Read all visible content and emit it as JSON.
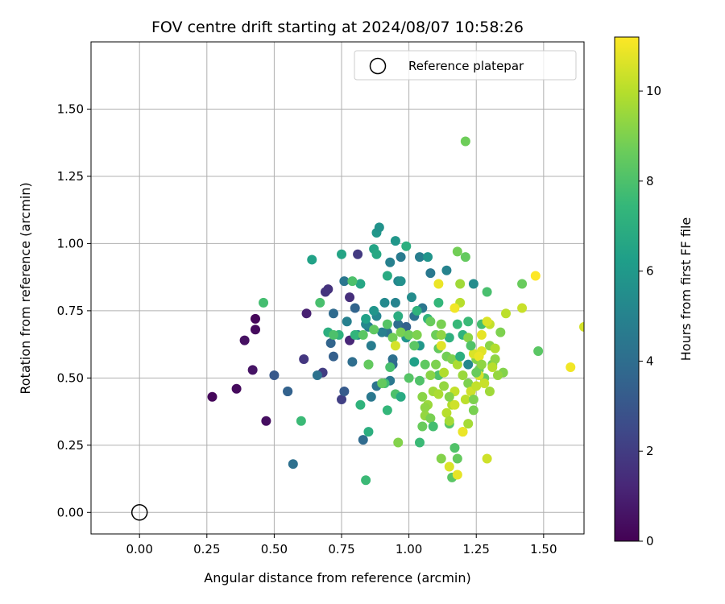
{
  "chart_data": {
    "type": "scatter",
    "title": "FOV centre drift starting at 2024/08/07 10:58:26",
    "xlabel": "Angular distance from reference (arcmin)",
    "ylabel": "Rotation from reference (arcmin)",
    "xlim": [
      -0.18,
      1.65
    ],
    "ylim": [
      -0.08,
      1.75
    ],
    "xticks": [
      "0.00",
      "0.25",
      "0.50",
      "0.75",
      "1.00",
      "1.25",
      "1.50"
    ],
    "xtick_values": [
      0,
      0.25,
      0.5,
      0.75,
      1.0,
      1.25,
      1.5
    ],
    "yticks": [
      "0.00",
      "0.25",
      "0.50",
      "0.75",
      "1.00",
      "1.25",
      "1.50"
    ],
    "ytick_values": [
      0,
      0.25,
      0.5,
      0.75,
      1.0,
      1.25,
      1.5
    ],
    "grid": true,
    "legend": {
      "placement": "top-right",
      "entries": [
        "Reference platepar"
      ]
    },
    "reference_point": {
      "x": 0.0,
      "y": 0.0,
      "marker": "open-circle"
    },
    "colorbar": {
      "label": "Hours from first FF file",
      "colormap": "viridis",
      "range": [
        0,
        11.2
      ],
      "ticks": [
        "0",
        "2",
        "4",
        "6",
        "8",
        "10"
      ],
      "tick_values": [
        0,
        2,
        4,
        6,
        8,
        10
      ]
    },
    "series": [
      {
        "points": [
          [
            0.27,
            0.43,
            0.2
          ],
          [
            0.36,
            0.46,
            0.3
          ],
          [
            0.47,
            0.34,
            0.4
          ],
          [
            0.42,
            0.53,
            0.6
          ],
          [
            0.43,
            0.68,
            0.3
          ],
          [
            0.43,
            0.72,
            0.2
          ],
          [
            0.39,
            0.64,
            0.5
          ],
          [
            0.62,
            0.74,
            1.0
          ],
          [
            0.61,
            0.57,
            1.8
          ],
          [
            0.68,
            0.52,
            2.0
          ],
          [
            0.7,
            0.83,
            1.6
          ],
          [
            0.69,
            0.82,
            1.7
          ],
          [
            0.75,
            0.42,
            2.1
          ],
          [
            0.81,
            0.96,
            1.9
          ],
          [
            0.78,
            0.64,
            1.2
          ],
          [
            0.78,
            0.8,
            1.5
          ],
          [
            0.5,
            0.51,
            3.1
          ],
          [
            0.55,
            0.45,
            3.4
          ],
          [
            0.55,
            0.45,
            3.5
          ],
          [
            0.57,
            0.18,
            4.1
          ],
          [
            0.66,
            0.51,
            4.2
          ],
          [
            0.72,
            0.58,
            3.4
          ],
          [
            0.71,
            0.63,
            3.6
          ],
          [
            0.72,
            0.74,
            3.9
          ],
          [
            0.76,
            0.45,
            3.2
          ],
          [
            0.8,
            0.76,
            3.6
          ],
          [
            0.83,
            0.27,
            3.9
          ],
          [
            0.86,
            0.43,
            4.5
          ],
          [
            0.88,
            0.47,
            4.3
          ],
          [
            0.79,
            0.56,
            4.0
          ],
          [
            0.76,
            0.86,
            4.4
          ],
          [
            0.85,
            0.69,
            4.6
          ],
          [
            0.92,
            0.67,
            4.3
          ],
          [
            0.94,
            0.57,
            4.1
          ],
          [
            0.93,
            0.49,
            4.5
          ],
          [
            0.94,
            0.55,
            3.9
          ],
          [
            0.96,
            0.7,
            4.0
          ],
          [
            0.97,
            0.95,
            4.6
          ],
          [
            0.99,
            0.69,
            3.5
          ],
          [
            1.02,
            0.73,
            4.2
          ],
          [
            1.05,
            0.76,
            4.4
          ],
          [
            1.08,
            0.89,
            4.5
          ],
          [
            1.04,
            0.95,
            4.8
          ],
          [
            0.77,
            0.71,
            4.9
          ],
          [
            0.81,
            0.66,
            5.0
          ],
          [
            0.84,
            0.7,
            5.2
          ],
          [
            0.86,
            0.62,
            4.7
          ],
          [
            0.88,
            0.73,
            5.1
          ],
          [
            0.9,
            0.67,
            4.9
          ],
          [
            0.91,
            0.78,
            5.3
          ],
          [
            0.93,
            0.93,
            4.9
          ],
          [
            0.95,
            0.78,
            5.0
          ],
          [
            0.96,
            0.86,
            5.2
          ],
          [
            1.01,
            0.8,
            5.4
          ],
          [
            1.14,
            0.9,
            5.0
          ],
          [
            1.22,
            0.55,
            5.2
          ],
          [
            1.24,
            0.85,
            5.4
          ],
          [
            0.87,
            0.75,
            5.8
          ],
          [
            0.88,
            1.04,
            5.9
          ],
          [
            0.89,
            1.06,
            5.7
          ],
          [
            0.95,
            1.01,
            5.9
          ],
          [
            0.97,
            0.86,
            5.6
          ],
          [
            0.99,
            0.65,
            5.8
          ],
          [
            1.04,
            0.62,
            5.9
          ],
          [
            1.07,
            0.95,
            5.8
          ],
          [
            0.75,
            0.96,
            6.5
          ],
          [
            0.82,
            0.85,
            6.6
          ],
          [
            0.84,
            0.72,
            6.4
          ],
          [
            0.87,
            0.98,
            6.5
          ],
          [
            0.88,
            0.96,
            6.7
          ],
          [
            0.92,
            0.88,
            6.8
          ],
          [
            0.96,
            0.73,
            6.9
          ],
          [
            0.99,
            0.99,
            7.0
          ],
          [
            1.03,
            0.75,
            7.2
          ],
          [
            1.07,
            0.72,
            7.3
          ],
          [
            1.11,
            0.78,
            7.4
          ],
          [
            1.15,
            0.65,
            7.1
          ],
          [
            1.18,
            0.7,
            7.5
          ],
          [
            1.22,
            0.71,
            7.6
          ],
          [
            1.27,
            0.7,
            7.8
          ],
          [
            1.29,
            0.82,
            7.9
          ],
          [
            1.2,
            0.66,
            7.2
          ],
          [
            0.64,
            0.94,
            6.4
          ],
          [
            0.7,
            0.67,
            7.0
          ],
          [
            0.74,
            0.66,
            7.1
          ],
          [
            0.8,
            0.66,
            7.3
          ],
          [
            0.82,
            0.4,
            7.2
          ],
          [
            0.85,
            0.55,
            7.5
          ],
          [
            0.85,
            0.3,
            7.0
          ],
          [
            0.84,
            0.12,
            7.6
          ],
          [
            0.91,
            0.48,
            7.7
          ],
          [
            0.92,
            0.38,
            7.4
          ],
          [
            0.93,
            0.54,
            7.9
          ],
          [
            0.95,
            0.44,
            8.0
          ],
          [
            1.0,
            0.5,
            8.2
          ],
          [
            1.02,
            0.62,
            8.3
          ],
          [
            1.04,
            0.49,
            8.1
          ],
          [
            1.04,
            0.26,
            7.6
          ],
          [
            1.06,
            0.55,
            8.4
          ],
          [
            1.08,
            0.71,
            8.6
          ],
          [
            1.1,
            0.66,
            8.7
          ],
          [
            1.11,
            0.61,
            8.5
          ],
          [
            1.11,
            0.51,
            8.0
          ],
          [
            1.12,
            0.7,
            8.9
          ],
          [
            1.14,
            0.58,
            8.8
          ],
          [
            1.16,
            0.57,
            9.0
          ],
          [
            1.18,
            0.97,
            8.8
          ],
          [
            1.21,
            0.95,
            8.5
          ],
          [
            1.21,
            1.38,
            8.7
          ],
          [
            1.15,
            0.33,
            8.2
          ],
          [
            1.17,
            0.24,
            8.1
          ],
          [
            1.18,
            0.2,
            8.5
          ],
          [
            1.16,
            0.13,
            8.3
          ],
          [
            1.22,
            0.48,
            9.0
          ],
          [
            1.24,
            0.38,
            8.9
          ],
          [
            1.25,
            0.57,
            9.1
          ],
          [
            1.26,
            0.53,
            8.7
          ],
          [
            1.28,
            0.5,
            8.6
          ],
          [
            1.3,
            0.62,
            9.2
          ],
          [
            1.31,
            0.55,
            8.8
          ],
          [
            1.32,
            0.57,
            9.3
          ],
          [
            1.34,
            0.67,
            9.0
          ],
          [
            1.35,
            0.52,
            9.1
          ],
          [
            1.42,
            0.85,
            8.6
          ],
          [
            1.48,
            0.6,
            8.3
          ],
          [
            0.46,
            0.78,
            7.8
          ],
          [
            0.6,
            0.34,
            7.6
          ],
          [
            0.67,
            0.78,
            7.9
          ],
          [
            0.72,
            0.66,
            8.0
          ],
          [
            0.79,
            0.86,
            8.0
          ],
          [
            0.83,
            0.66,
            8.3
          ],
          [
            0.85,
            0.55,
            8.5
          ],
          [
            0.87,
            0.68,
            8.4
          ],
          [
            0.92,
            0.7,
            8.2
          ],
          [
            0.94,
            0.65,
            8.8
          ],
          [
            0.96,
            0.26,
            9.1
          ],
          [
            0.97,
            0.67,
            8.9
          ],
          [
            1.0,
            0.66,
            8.7
          ],
          [
            1.03,
            0.66,
            9.0
          ],
          [
            1.05,
            0.43,
            9.2
          ],
          [
            1.06,
            0.36,
            9.4
          ],
          [
            1.07,
            0.4,
            9.5
          ],
          [
            1.09,
            0.45,
            9.6
          ],
          [
            1.11,
            0.44,
            9.8
          ],
          [
            1.12,
            0.66,
            9.3
          ],
          [
            1.13,
            0.52,
            9.9
          ],
          [
            1.14,
            0.37,
            10.0
          ],
          [
            1.15,
            0.34,
            9.7
          ],
          [
            1.16,
            0.4,
            9.9
          ],
          [
            1.17,
            0.45,
            10.2
          ],
          [
            1.18,
            0.55,
            9.8
          ],
          [
            1.19,
            0.78,
            10.0
          ],
          [
            1.19,
            0.85,
            9.6
          ],
          [
            1.2,
            0.3,
            10.3
          ],
          [
            1.21,
            0.42,
            10.1
          ],
          [
            1.22,
            0.33,
            9.7
          ],
          [
            1.23,
            0.45,
            10.4
          ],
          [
            1.24,
            0.59,
            10.6
          ],
          [
            1.25,
            0.47,
            10.2
          ],
          [
            1.26,
            0.51,
            10.5
          ],
          [
            1.27,
            0.6,
            10.7
          ],
          [
            1.28,
            0.48,
            10.3
          ],
          [
            1.29,
            0.2,
            10.4
          ],
          [
            1.3,
            0.7,
            10.2
          ],
          [
            1.31,
            0.54,
            10.0
          ],
          [
            1.32,
            0.61,
            9.9
          ],
          [
            1.36,
            0.74,
            10.1
          ],
          [
            1.42,
            0.76,
            10.3
          ],
          [
            1.15,
            0.17,
            10.6
          ],
          [
            1.18,
            0.14,
            10.8
          ],
          [
            1.2,
            0.3,
            10.9
          ],
          [
            1.12,
            0.62,
            10.7
          ],
          [
            1.11,
            0.85,
            10.9
          ],
          [
            1.17,
            0.76,
            11.0
          ],
          [
            1.26,
            0.58,
            10.9
          ],
          [
            1.27,
            0.66,
            10.8
          ],
          [
            1.13,
            0.47,
            9.4
          ],
          [
            1.08,
            0.51,
            9.2
          ],
          [
            1.1,
            0.55,
            9.0
          ],
          [
            1.06,
            0.39,
            9.3
          ],
          [
            1.15,
            0.43,
            9.1
          ],
          [
            1.2,
            0.51,
            9.5
          ],
          [
            1.22,
            0.65,
            9.2
          ],
          [
            1.24,
            0.42,
            9.0
          ],
          [
            1.27,
            0.55,
            9.3
          ],
          [
            1.3,
            0.45,
            9.6
          ],
          [
            1.12,
            0.2,
            9.1
          ],
          [
            1.08,
            0.35,
            8.9
          ],
          [
            1.05,
            0.32,
            8.6
          ],
          [
            1.47,
            0.88,
            11.2
          ],
          [
            1.6,
            0.54,
            11.0
          ],
          [
            1.65,
            0.69,
            10.5
          ],
          [
            0.9,
            0.48,
            8.5
          ],
          [
            0.95,
            0.62,
            10.5
          ],
          [
            1.17,
            0.4,
            10.4
          ],
          [
            1.25,
            0.52,
            8.6
          ],
          [
            1.33,
            0.51,
            9.4
          ],
          [
            1.29,
            0.71,
            10.6
          ],
          [
            1.23,
            0.62,
            8.1
          ],
          [
            1.09,
            0.32,
            7.8
          ],
          [
            1.02,
            0.56,
            6.3
          ],
          [
            0.97,
            0.43,
            6.8
          ],
          [
            1.19,
            0.58,
            7.0
          ]
        ]
      }
    ]
  }
}
